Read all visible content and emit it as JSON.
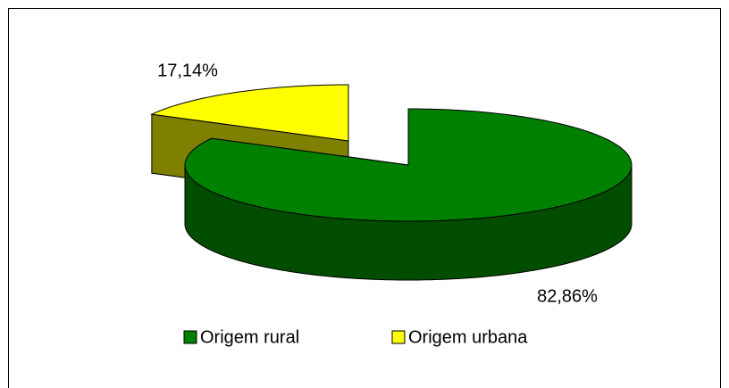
{
  "chart_data": {
    "type": "pie",
    "three_d": true,
    "categories": [
      "Origem rural",
      "Origem urbana"
    ],
    "values": [
      82.86,
      17.14
    ],
    "value_labels": [
      "82,86%",
      "17,14%"
    ],
    "colors": [
      "#008000",
      "#ffff00"
    ],
    "legend": "bottom"
  }
}
